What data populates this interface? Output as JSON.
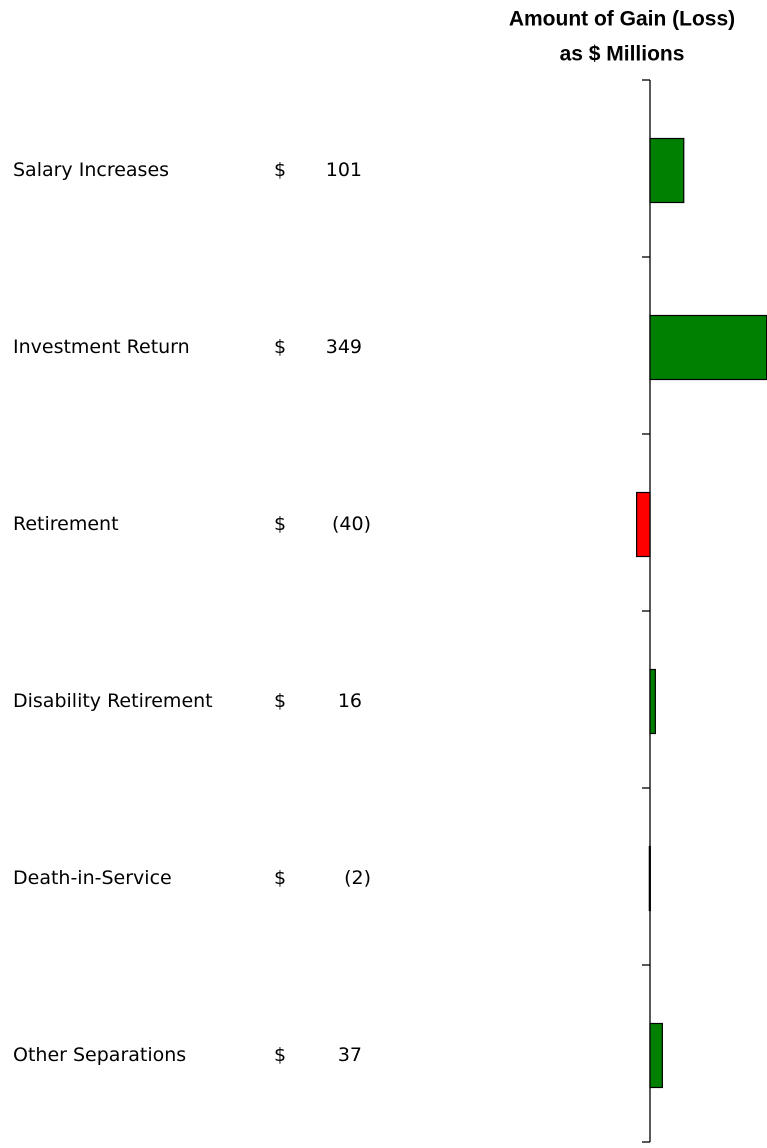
{
  "chart_data": {
    "type": "bar",
    "orientation": "horizontal",
    "title": [
      "Amount of Gain (Loss)",
      "as $ Millions"
    ],
    "currency_symbol": "$",
    "categories": [
      "Salary Increases",
      "Investment Return",
      "Retirement",
      "Disability Retirement",
      "Death-in-Service",
      "Other Separations"
    ],
    "values": [
      101,
      349,
      -40,
      16,
      -2,
      37
    ],
    "value_labels": [
      "101",
      "349",
      "(40)",
      "16",
      "(2)",
      "37"
    ],
    "xlim": [
      -50,
      350
    ],
    "positive_color": "#008000",
    "negative_color": "#ff0000"
  }
}
